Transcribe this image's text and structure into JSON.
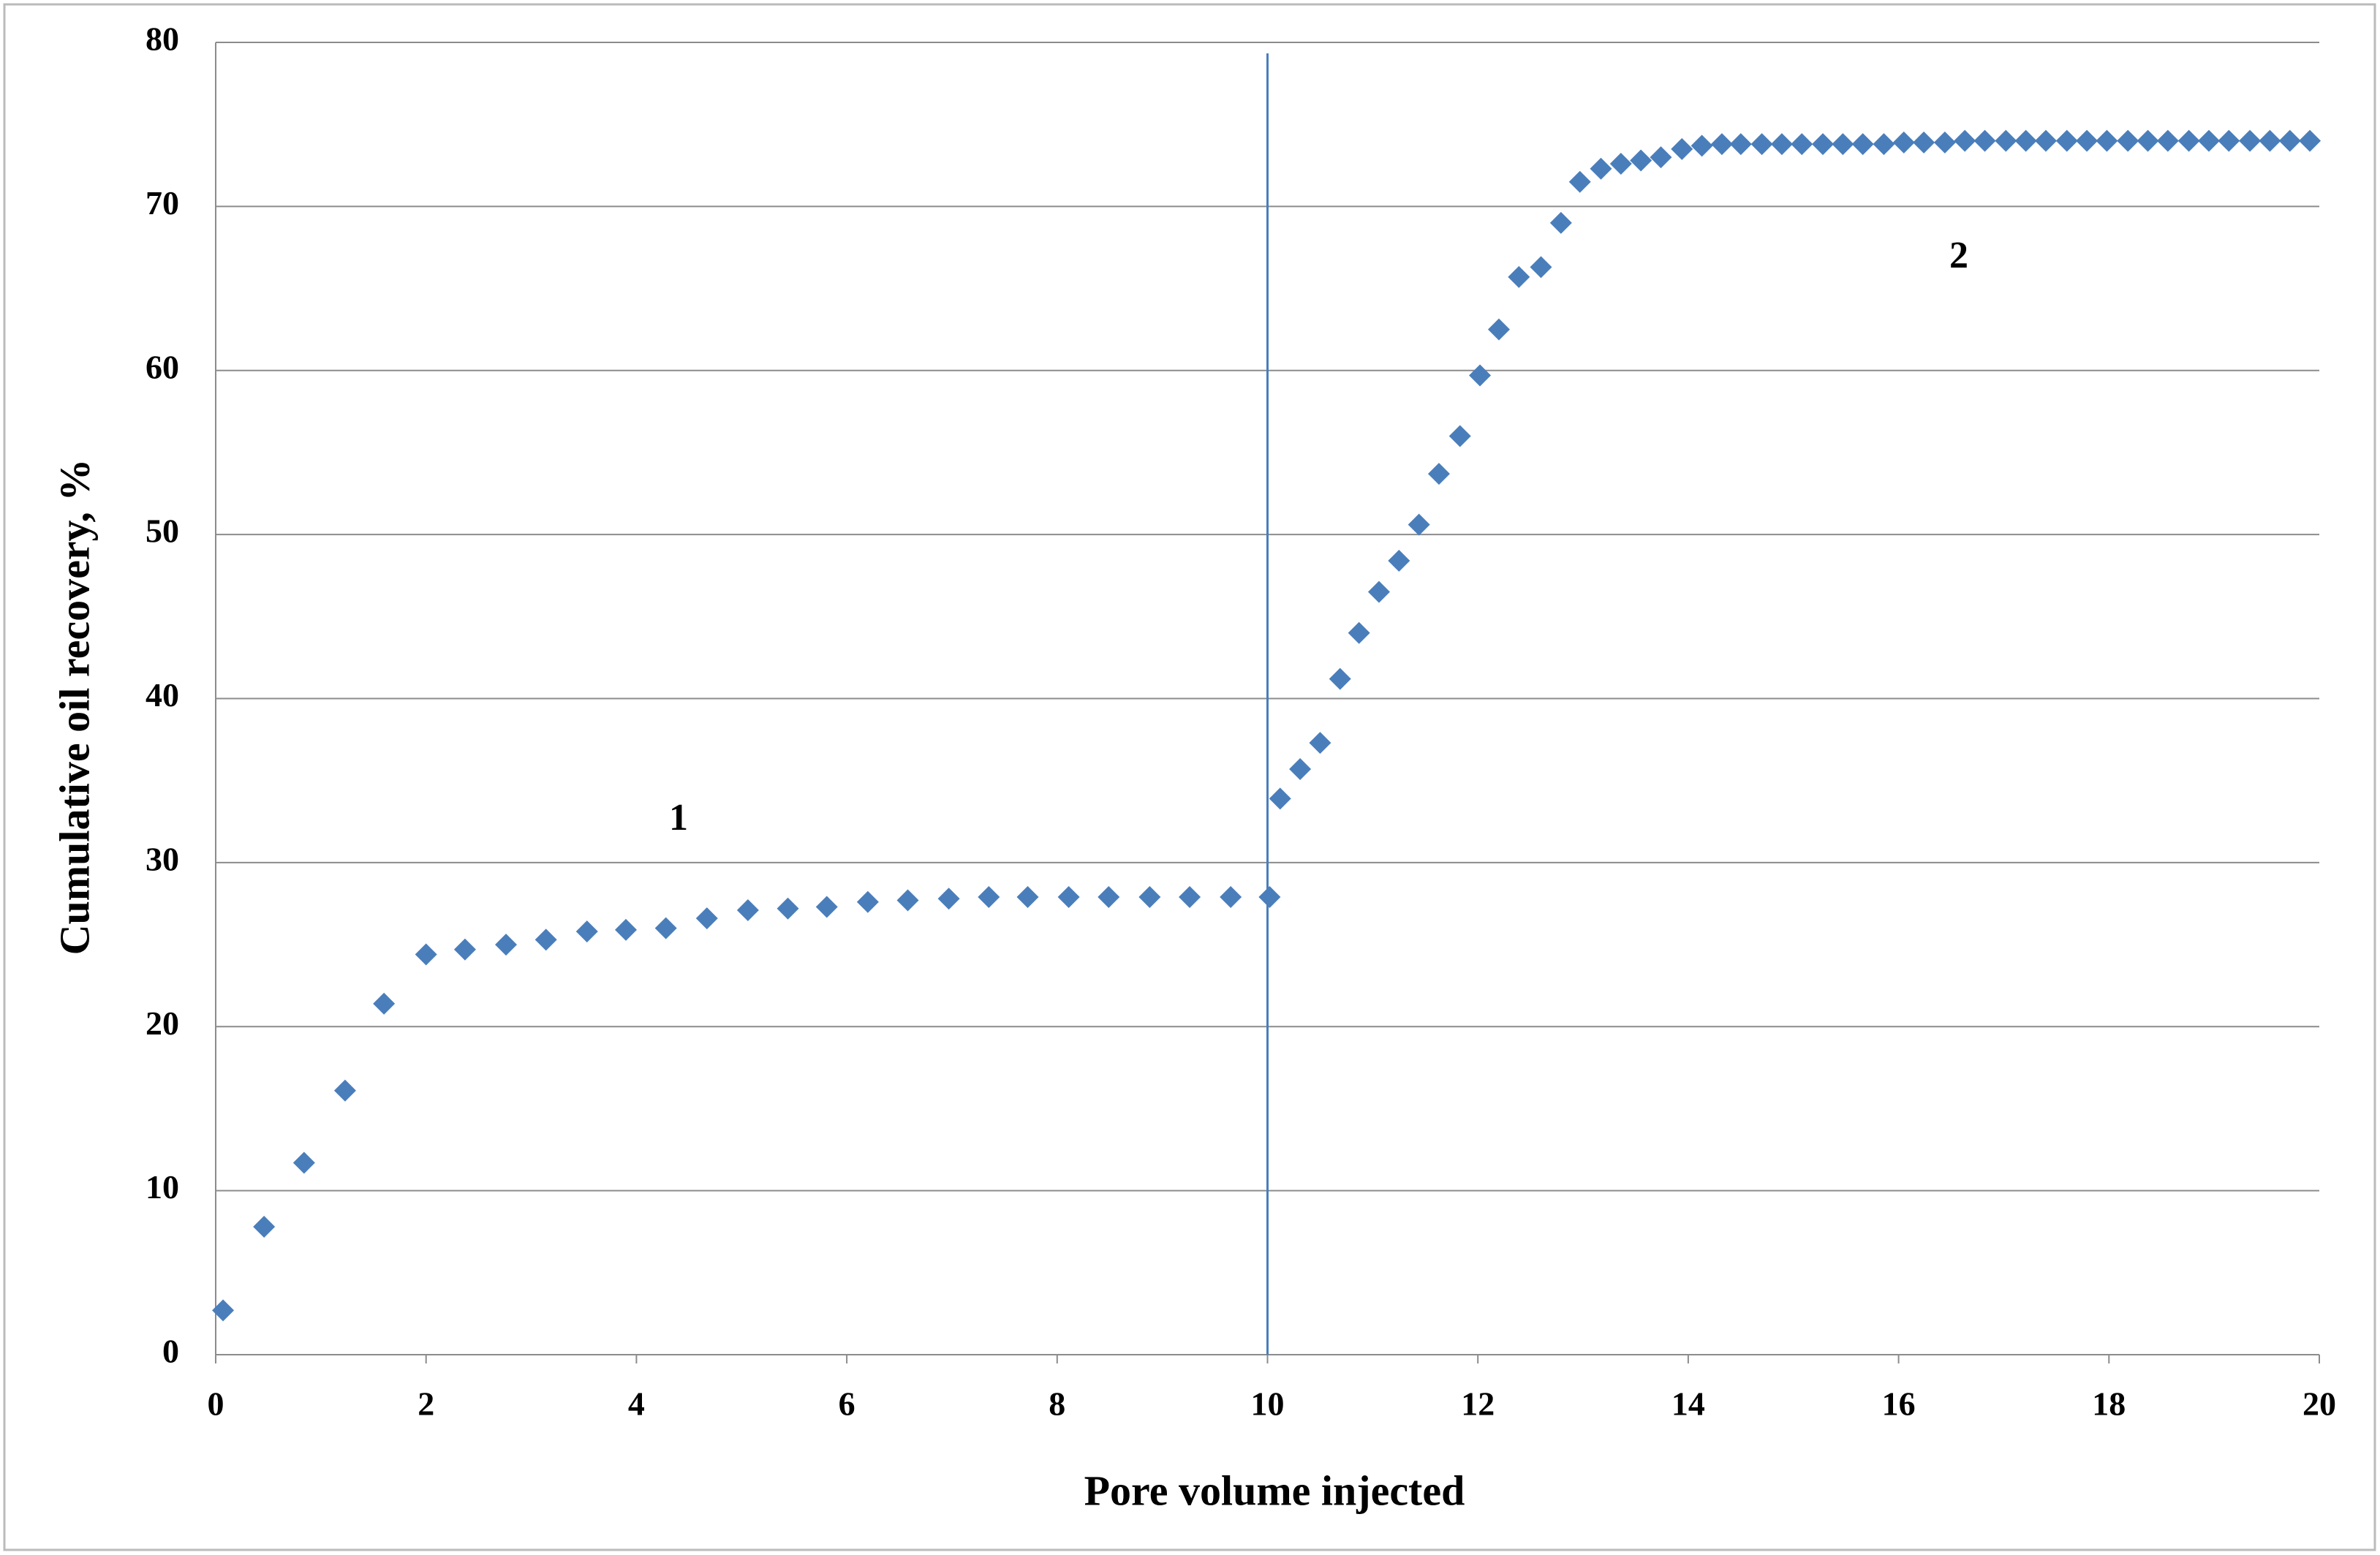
{
  "chart_data": {
    "type": "scatter",
    "x_label": "Pore volume injected",
    "y_label": "Cumulative  oil recovery, %",
    "annotations": [
      "1",
      "2"
    ],
    "vertical_line": 10,
    "xlim": [
      0,
      20
    ],
    "xticks": [
      0,
      2,
      4,
      6,
      8,
      10,
      12,
      14,
      16,
      18,
      20
    ],
    "ylim": [
      0,
      80
    ],
    "yticks": [
      0,
      10,
      20,
      30,
      40,
      50,
      60,
      70,
      80
    ],
    "grid": true,
    "series": [
      {
        "color": "#4a7ebb",
        "x": [
          0.07,
          0.46,
          0.84,
          1.23,
          1.6,
          2.0,
          2.37,
          2.76,
          3.14,
          3.53,
          3.9,
          4.28,
          4.67,
          5.06,
          5.44,
          5.81,
          6.2,
          6.58,
          6.97,
          7.35,
          7.72,
          8.11,
          8.49,
          8.88,
          9.26,
          9.65,
          10.02,
          10.12,
          10.31,
          10.5,
          10.69,
          10.87,
          11.06,
          11.25,
          11.44,
          11.63,
          11.83,
          12.02,
          12.2,
          12.39,
          12.6,
          12.79,
          12.97,
          13.17,
          13.36,
          13.55,
          13.74,
          13.94,
          14.13,
          14.32,
          14.5,
          14.7,
          14.89,
          15.08,
          15.28,
          15.47,
          15.66,
          15.86,
          16.05,
          16.24,
          16.44,
          16.63,
          16.82,
          17.02,
          17.21,
          17.4,
          17.6,
          17.79,
          17.98,
          18.18,
          18.37,
          18.56,
          18.76,
          18.95,
          19.14,
          19.34,
          19.53,
          19.72,
          19.91
        ],
        "values": [
          2.7,
          7.8,
          11.7,
          16.1,
          21.4,
          24.4,
          24.7,
          25.0,
          25.3,
          25.8,
          25.9,
          26.0,
          26.6,
          27.1,
          27.2,
          27.3,
          27.6,
          27.7,
          27.8,
          27.9,
          27.9,
          27.9,
          27.9,
          27.9,
          27.9,
          27.9,
          27.9,
          33.9,
          35.7,
          37.3,
          41.2,
          44.0,
          46.5,
          48.4,
          50.6,
          53.7,
          56.0,
          59.7,
          62.5,
          65.7,
          66.3,
          69.0,
          71.5,
          72.3,
          72.6,
          72.8,
          73.0,
          73.5,
          73.7,
          73.8,
          73.8,
          73.8,
          73.8,
          73.8,
          73.8,
          73.8,
          73.8,
          73.8,
          73.9,
          73.9,
          73.9,
          74.0,
          74.0,
          74.0,
          74.0,
          74.0,
          74.0,
          74.0,
          74.0,
          74.0,
          74.0,
          74.0,
          74.0,
          74.0,
          74.0,
          74.0,
          74.0,
          74.0,
          74.0
        ]
      }
    ]
  }
}
